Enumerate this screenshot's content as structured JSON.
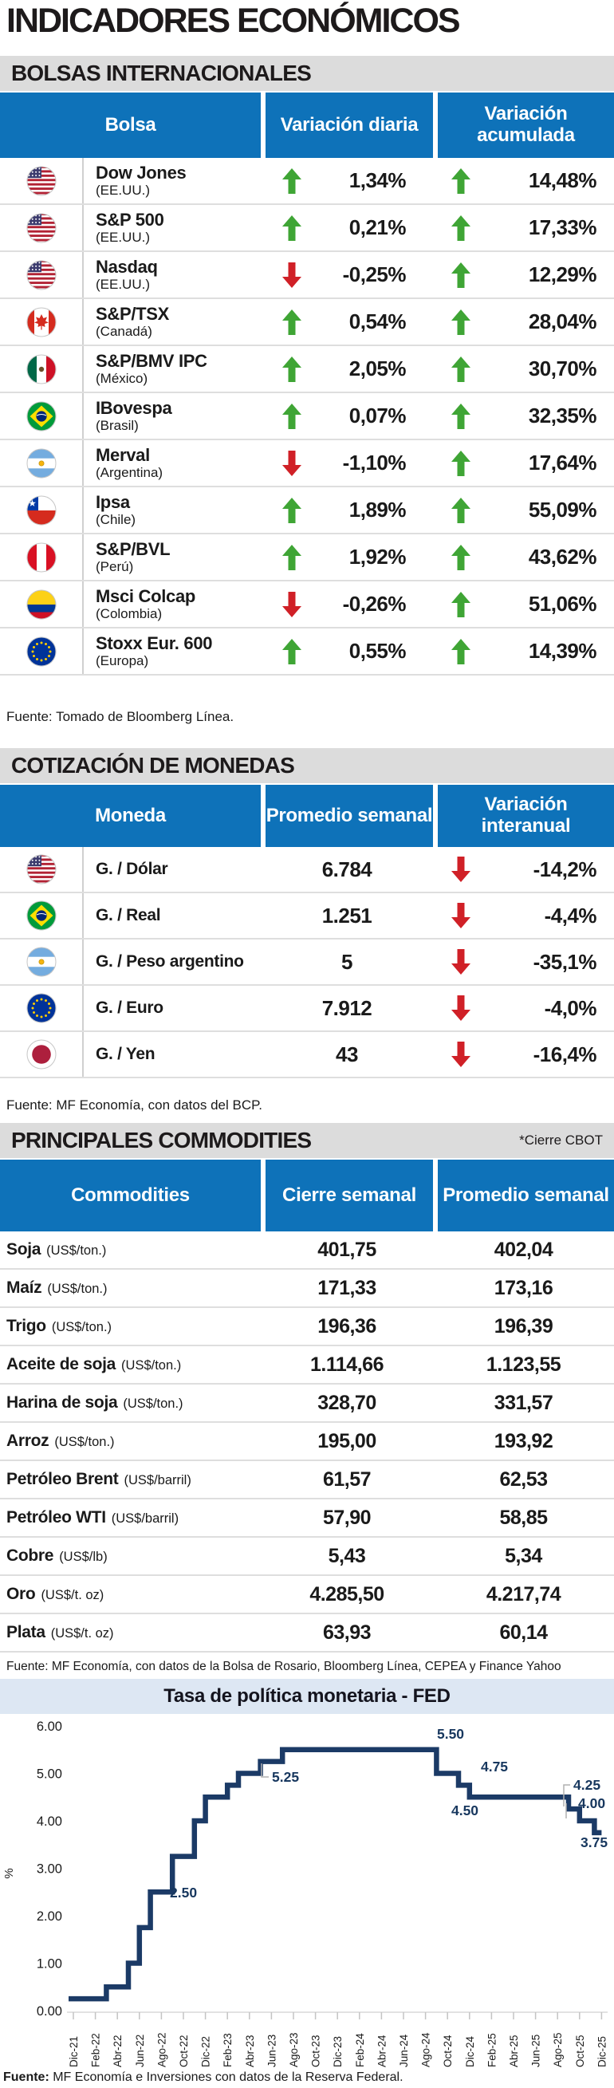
{
  "page": {
    "title": "INDICADORES ECONÓMICOS"
  },
  "colors": {
    "header_blue": "#0e72b9",
    "section_gray": "#dcdcdc",
    "up_green": "#3fa535",
    "down_red": "#d02027",
    "chart_navy": "#1b3a66",
    "chart_bar_bg": "#dde7f3"
  },
  "sections": {
    "bolsas": {
      "heading": "BOLSAS INTERNACIONALES",
      "columns": [
        "Bolsa",
        "Variación diaria",
        "Variación acumulada"
      ],
      "rows": [
        {
          "flag": "us",
          "name": "Dow Jones",
          "country": "(EE.UU.)",
          "daily": "1,34%",
          "daily_dir": "up",
          "accum": "14,48%",
          "accum_dir": "up"
        },
        {
          "flag": "us",
          "name": "S&P 500",
          "country": "(EE.UU.)",
          "daily": "0,21%",
          "daily_dir": "up",
          "accum": "17,33%",
          "accum_dir": "up"
        },
        {
          "flag": "us",
          "name": "Nasdaq",
          "country": "(EE.UU.)",
          "daily": "-0,25%",
          "daily_dir": "down",
          "accum": "12,29%",
          "accum_dir": "up"
        },
        {
          "flag": "ca",
          "name": "S&P/TSX",
          "country": "(Canadá)",
          "daily": "0,54%",
          "daily_dir": "up",
          "accum": "28,04%",
          "accum_dir": "up"
        },
        {
          "flag": "mx",
          "name": "S&P/BMV IPC",
          "country": "(México)",
          "daily": "2,05%",
          "daily_dir": "up",
          "accum": "30,70%",
          "accum_dir": "up"
        },
        {
          "flag": "br",
          "name": "IBovespa",
          "country": "(Brasil)",
          "daily": "0,07%",
          "daily_dir": "up",
          "accum": "32,35%",
          "accum_dir": "up"
        },
        {
          "flag": "ar",
          "name": "Merval",
          "country": "(Argentina)",
          "daily": "-1,10%",
          "daily_dir": "down",
          "accum": "17,64%",
          "accum_dir": "up"
        },
        {
          "flag": "cl",
          "name": "Ipsa",
          "country": "(Chile)",
          "daily": "1,89%",
          "daily_dir": "up",
          "accum": "55,09%",
          "accum_dir": "up"
        },
        {
          "flag": "pe",
          "name": "S&P/BVL",
          "country": "(Perú)",
          "daily": "1,92%",
          "daily_dir": "up",
          "accum": "43,62%",
          "accum_dir": "up"
        },
        {
          "flag": "co",
          "name": "Msci Colcap",
          "country": "(Colombia)",
          "daily": "-0,26%",
          "daily_dir": "down",
          "accum": "51,06%",
          "accum_dir": "up"
        },
        {
          "flag": "eu",
          "name": "Stoxx Eur. 600",
          "country": "(Europa)",
          "daily": "0,55%",
          "daily_dir": "up",
          "accum": "14,39%",
          "accum_dir": "up"
        }
      ],
      "source": "Fuente: Tomado de Bloomberg Línea."
    },
    "monedas": {
      "heading": "COTIZACIÓN DE MONEDAS",
      "columns": [
        "Moneda",
        "Promedio semanal",
        "Variación interanual"
      ],
      "rows": [
        {
          "flag": "us",
          "name": "G. / Dólar",
          "avg": "6.784",
          "yoy": "-14,2%",
          "yoy_dir": "down"
        },
        {
          "flag": "br",
          "name": "G. / Real",
          "avg": "1.251",
          "yoy": "-4,4%",
          "yoy_dir": "down"
        },
        {
          "flag": "ar",
          "name": "G. / Peso argentino",
          "avg": "5",
          "yoy": "-35,1%",
          "yoy_dir": "down"
        },
        {
          "flag": "eu",
          "name": "G. / Euro",
          "avg": "7.912",
          "yoy": "-4,0%",
          "yoy_dir": "down"
        },
        {
          "flag": "jp",
          "name": "G. / Yen",
          "avg": "43",
          "yoy": "-16,4%",
          "yoy_dir": "down"
        }
      ],
      "source": "Fuente: MF Economía, con datos del BCP."
    },
    "commodities": {
      "heading": "PRINCIPALES COMMODITIES",
      "note": "*Cierre CBOT",
      "columns": [
        "Commodities",
        "Cierre semanal",
        "Promedio semanal"
      ],
      "rows": [
        {
          "name": "Soja",
          "unit": "(US$/ton.)",
          "close": "401,75",
          "avg": "402,04"
        },
        {
          "name": "Maíz",
          "unit": "(US$/ton.)",
          "close": "171,33",
          "avg": "173,16"
        },
        {
          "name": "Trigo",
          "unit": "(US$/ton.)",
          "close": "196,36",
          "avg": "196,39"
        },
        {
          "name": "Aceite de soja",
          "unit": "(US$/ton.)",
          "close": "1.114,66",
          "avg": "1.123,55"
        },
        {
          "name": "Harina de soja",
          "unit": "(US$/ton.)",
          "close": "328,70",
          "avg": "331,57"
        },
        {
          "name": "Arroz",
          "unit": "(US$/ton.)",
          "close": "195,00",
          "avg": "193,92"
        },
        {
          "name": "Petróleo Brent",
          "unit": "(US$/barril)",
          "close": "61,57",
          "avg": "62,53"
        },
        {
          "name": "Petróleo WTI",
          "unit": "(US$/barril)",
          "close": "57,90",
          "avg": "58,85"
        },
        {
          "name": "Cobre",
          "unit": "(US$/lb)",
          "close": "5,43",
          "avg": "5,34"
        },
        {
          "name": "Oro",
          "unit": "(US$/t. oz)",
          "close": "4.285,50",
          "avg": "4.217,74"
        },
        {
          "name": "Plata",
          "unit": "(US$/t. oz)",
          "close": "63,93",
          "avg": "60,14"
        }
      ],
      "source": "Fuente: MF Economía, con datos de la Bolsa de Rosario, Bloomberg Línea, CEPEA y Finance Yahoo"
    }
  },
  "chart_data": {
    "type": "line",
    "subtype": "step",
    "title": "Tasa de política monetaria - FED",
    "ylabel": "%",
    "ylim": [
      0,
      6
    ],
    "yticks": [
      "6.00",
      "5.00",
      "4.00",
      "3.00",
      "2.00",
      "1.00",
      "0.00"
    ],
    "x_tick_labels": [
      "Dic-21",
      "Feb-22",
      "Abr-22",
      "Jun-22",
      "Ago-22",
      "Oct-22",
      "Dic-22",
      "Feb-23",
      "Abr-23",
      "Jun-23",
      "Ago-23",
      "Oct-23",
      "Dic-23",
      "Feb-24",
      "Abr-24",
      "Jun-24",
      "Ago-24",
      "Oct-24",
      "Dic-24",
      "Feb-25",
      "Abr-25",
      "Jun-25",
      "Ago-25",
      "Oct-25",
      "Dic-25"
    ],
    "months_per_tick": 2,
    "step_points": [
      {
        "date": "Dic-21",
        "m": 0,
        "rate": 0.25
      },
      {
        "date": "Mar-22",
        "m": 3,
        "rate": 0.5
      },
      {
        "date": "May-22",
        "m": 5,
        "rate": 1.0
      },
      {
        "date": "Jun-22",
        "m": 6,
        "rate": 1.75
      },
      {
        "date": "Jul-22",
        "m": 7,
        "rate": 2.5
      },
      {
        "date": "Sep-22",
        "m": 9,
        "rate": 3.25
      },
      {
        "date": "Nov-22",
        "m": 11,
        "rate": 4.0
      },
      {
        "date": "Dic-22",
        "m": 12,
        "rate": 4.5
      },
      {
        "date": "Feb-23",
        "m": 14,
        "rate": 4.75
      },
      {
        "date": "Mar-23",
        "m": 15,
        "rate": 5.0
      },
      {
        "date": "May-23",
        "m": 17,
        "rate": 5.25
      },
      {
        "date": "Jul-23",
        "m": 19,
        "rate": 5.5
      },
      {
        "date": "Sep-24",
        "m": 33,
        "rate": 5.0
      },
      {
        "date": "Nov-24",
        "m": 35,
        "rate": 4.75
      },
      {
        "date": "Dic-24",
        "m": 36,
        "rate": 4.5
      },
      {
        "date": "Sep-25",
        "m": 45,
        "rate": 4.25
      },
      {
        "date": "Oct-25",
        "m": 46,
        "rate": 4.0
      },
      {
        "date": "Dic-25",
        "m": 48,
        "rate": 3.75
      }
    ],
    "annotations": [
      {
        "text": "2.50",
        "x": 213,
        "y": 230,
        "anchor": "start"
      },
      {
        "text": "5.25",
        "x": 341,
        "y": 85,
        "anchor": "start",
        "connector": [
          [
            328,
            62
          ],
          [
            328,
            79
          ],
          [
            337,
            79
          ]
        ]
      },
      {
        "text": "5.50",
        "x": 565,
        "y": 31,
        "anchor": "middle"
      },
      {
        "text": "4.75",
        "x": 620,
        "y": 72,
        "anchor": "middle"
      },
      {
        "text": "4.50",
        "x": 583,
        "y": 127,
        "anchor": "middle"
      },
      {
        "text": "4.25",
        "x": 719,
        "y": 95,
        "anchor": "start",
        "connector": [
          [
            707,
            116
          ],
          [
            707,
            89
          ],
          [
            715,
            89
          ]
        ]
      },
      {
        "text": "4.00",
        "x": 725,
        "y": 118,
        "anchor": "start",
        "connector": [
          [
            710,
            131
          ],
          [
            710,
            112
          ]
        ]
      },
      {
        "text": "3.75",
        "x": 728,
        "y": 167,
        "anchor": "start"
      }
    ],
    "line_color": "#1b3a66",
    "grid": false,
    "source_prefix": "Fuente:",
    "source_text": " MF Economía e Inversiones con datos de la Reserva Federal."
  }
}
